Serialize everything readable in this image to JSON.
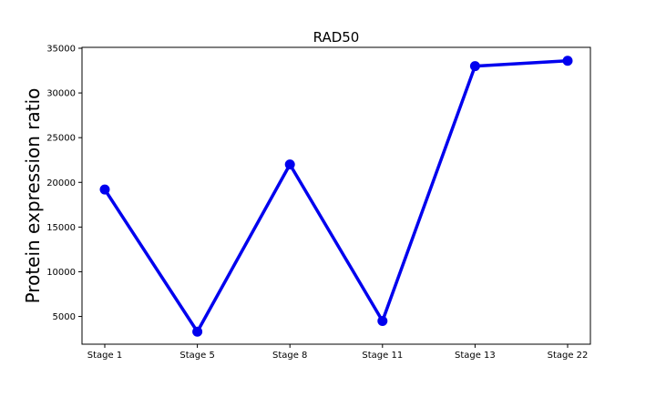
{
  "chart_data": {
    "type": "line",
    "title": "RAD50",
    "xlabel": "",
    "ylabel": "Protein expression ratio",
    "categories": [
      "Stage 1",
      "Stage 5",
      "Stage 8",
      "Stage 11",
      "Stage 13",
      "Stage 22"
    ],
    "series": [
      {
        "values": [
          19200,
          3300,
          22000,
          4500,
          33000,
          33600
        ],
        "color": "#0000ee"
      }
    ],
    "ylim": [
      1900,
      35100
    ],
    "yticks": [
      5000,
      10000,
      15000,
      20000,
      25000,
      30000,
      35000
    ],
    "grid": false,
    "legend": "none"
  }
}
